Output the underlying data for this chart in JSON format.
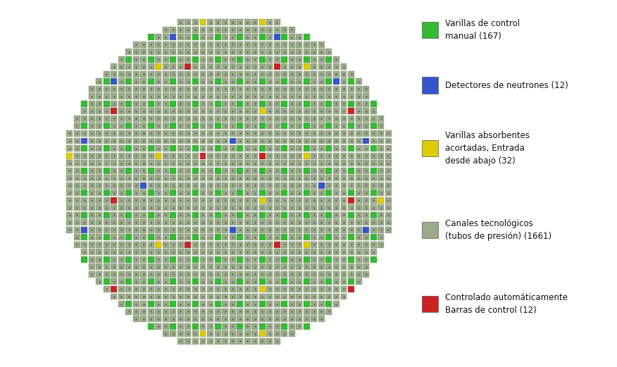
{
  "colors": {
    "background": "#ffffff",
    "cell_bg": "#9aab8a",
    "cell_border": "#7a8a6a",
    "dot": "#444444",
    "green": "#33bb33",
    "blue": "#3355cc",
    "yellow": "#ddcc00",
    "red": "#cc2222"
  },
  "legend": [
    {
      "color": "#33bb33",
      "label": "Varillas de control\nmanual (167)"
    },
    {
      "color": "#3355cc",
      "label": "Detectores de neutrones (12)"
    },
    {
      "color": "#ddcc00",
      "label": "Varillas absorbentes\nacortadas, Entrada\ndesde abajo (32)"
    },
    {
      "color": "#9aab8a",
      "label": "Canales tecnológicos\n(tubos de presión) (1661)"
    },
    {
      "color": "#cc2222",
      "label": "Controlado automáticamente\nBarras de control (12)"
    }
  ]
}
